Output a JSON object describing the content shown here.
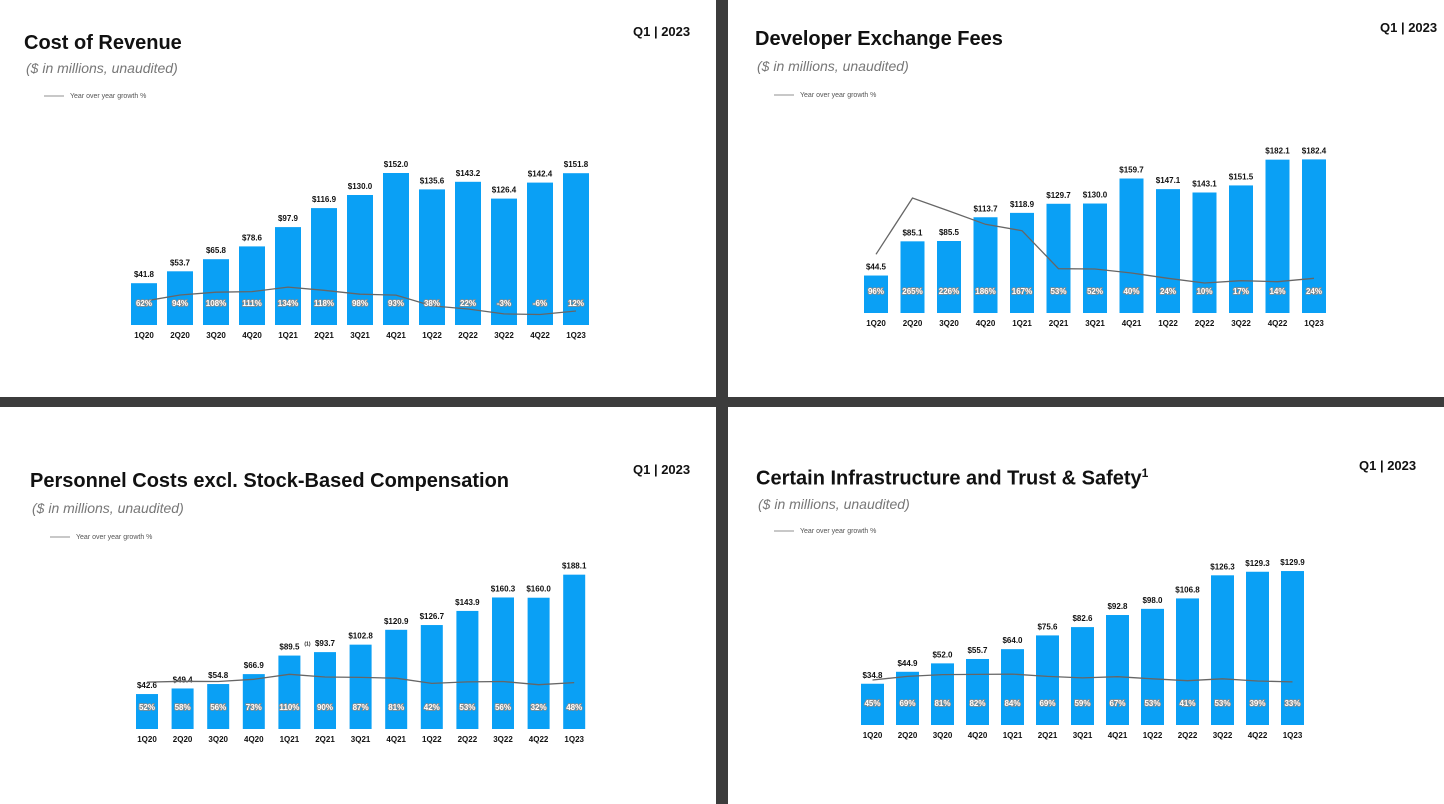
{
  "period": "Q1 | 2023",
  "legend_label": "Year over year growth %",
  "subtitle": "($ in millions, unaudited)",
  "colors": {
    "bar": "#0aa0f5",
    "line": "#666666",
    "legend_line": "#c8c8c8"
  },
  "chart_data": [
    {
      "type": "bar",
      "title": "Cost of Revenue",
      "categories": [
        "1Q20",
        "2Q20",
        "3Q20",
        "4Q20",
        "1Q21",
        "2Q21",
        "3Q21",
        "4Q21",
        "1Q22",
        "2Q22",
        "3Q22",
        "4Q22",
        "1Q23"
      ],
      "values": [
        41.8,
        53.7,
        65.8,
        78.6,
        97.9,
        116.9,
        130.0,
        152.0,
        135.6,
        143.2,
        126.4,
        142.4,
        151.8
      ],
      "value_labels": [
        "$41.8",
        "$53.7",
        "$65.8",
        "$78.6",
        "$97.9",
        "$116.9",
        "$130.0",
        "$152.0",
        "$135.6",
        "$143.2",
        "$126.4",
        "$142.4",
        "$151.8"
      ],
      "growth": [
        62,
        94,
        108,
        111,
        134,
        118,
        98,
        93,
        38,
        22,
        -3,
        -6,
        12
      ],
      "growth_labels": [
        "62%",
        "94%",
        "108%",
        "111%",
        "134%",
        "118%",
        "98%",
        "93%",
        "38%",
        "22%",
        "-3%",
        "-6%",
        "12%"
      ],
      "ylim": [
        0,
        160
      ],
      "growth_range": [
        -60,
        760
      ]
    },
    {
      "type": "bar",
      "title": "Developer Exchange Fees",
      "categories": [
        "1Q20",
        "2Q20",
        "3Q20",
        "4Q20",
        "1Q21",
        "2Q21",
        "3Q21",
        "4Q21",
        "1Q22",
        "2Q22",
        "3Q22",
        "4Q22",
        "1Q23"
      ],
      "values": [
        44.5,
        85.1,
        85.5,
        113.7,
        118.9,
        129.7,
        130.0,
        159.7,
        147.1,
        143.1,
        151.5,
        182.1,
        182.4
      ],
      "value_labels": [
        "$44.5",
        "$85.1",
        "$85.5",
        "$113.7",
        "$118.9",
        "$129.7",
        "$130.0",
        "$159.7",
        "$147.1",
        "$143.1",
        "$151.5",
        "$182.1",
        "$182.4"
      ],
      "growth": [
        96,
        265,
        226,
        186,
        167,
        53,
        52,
        40,
        24,
        10,
        17,
        14,
        24
      ],
      "growth_labels": [
        "96%",
        "265%",
        "226%",
        "186%",
        "167%",
        "53%",
        "52%",
        "40%",
        "24%",
        "10%",
        "17%",
        "14%",
        "24%"
      ],
      "ylim": [
        0,
        190
      ],
      "growth_range": [
        -80,
        400
      ]
    },
    {
      "type": "bar",
      "title": "Personnel Costs excl. Stock-Based Compensation",
      "footnote": "(1)",
      "categories": [
        "1Q20",
        "2Q20",
        "3Q20",
        "4Q20",
        "1Q21",
        "2Q21",
        "3Q21",
        "4Q21",
        "1Q22",
        "2Q22",
        "3Q22",
        "4Q22",
        "1Q23"
      ],
      "values": [
        42.6,
        49.4,
        54.8,
        66.9,
        89.5,
        93.7,
        102.8,
        120.9,
        126.7,
        143.9,
        160.3,
        160.0,
        188.1
      ],
      "value_labels": [
        "$42.6",
        "$49.4",
        "$54.8",
        "$66.9",
        "$89.5",
        "$93.7",
        "$102.8",
        "$120.9",
        "$126.7",
        "$143.9",
        "$160.3",
        "$160.0",
        "$188.1"
      ],
      "growth": [
        52,
        58,
        56,
        73,
        110,
        90,
        87,
        81,
        42,
        53,
        56,
        32,
        48
      ],
      "growth_labels": [
        "52%",
        "58%",
        "56%",
        "73%",
        "110%",
        "90%",
        "87%",
        "81%",
        "42%",
        "53%",
        "56%",
        "32%",
        "48%"
      ],
      "ylim": [
        0,
        195
      ],
      "growth_range": [
        -300,
        900
      ]
    },
    {
      "type": "bar",
      "title": "Certain Infrastructure and Trust & Safety",
      "title_sup": "1",
      "categories": [
        "1Q20",
        "2Q20",
        "3Q20",
        "4Q20",
        "1Q21",
        "2Q21",
        "3Q21",
        "4Q21",
        "1Q22",
        "2Q22",
        "3Q22",
        "4Q22",
        "1Q23"
      ],
      "values": [
        34.8,
        44.9,
        52.0,
        55.7,
        64.0,
        75.6,
        82.6,
        92.8,
        98.0,
        106.8,
        126.3,
        129.3,
        129.9
      ],
      "value_labels": [
        "$34.8",
        "$44.9",
        "$52.0",
        "$55.7",
        "$64.0",
        "$75.6",
        "$82.6",
        "$92.8",
        "$98.0",
        "$106.8",
        "$126.3",
        "$129.3",
        "$129.9"
      ],
      "growth": [
        45,
        69,
        81,
        82,
        84,
        69,
        59,
        67,
        53,
        41,
        53,
        39,
        33
      ],
      "growth_labels": [
        "45%",
        "69%",
        "81%",
        "82%",
        "84%",
        "69%",
        "59%",
        "67%",
        "53%",
        "41%",
        "53%",
        "39%",
        "33%"
      ],
      "ylim": [
        0,
        135
      ],
      "growth_range": [
        -250,
        800
      ]
    }
  ]
}
